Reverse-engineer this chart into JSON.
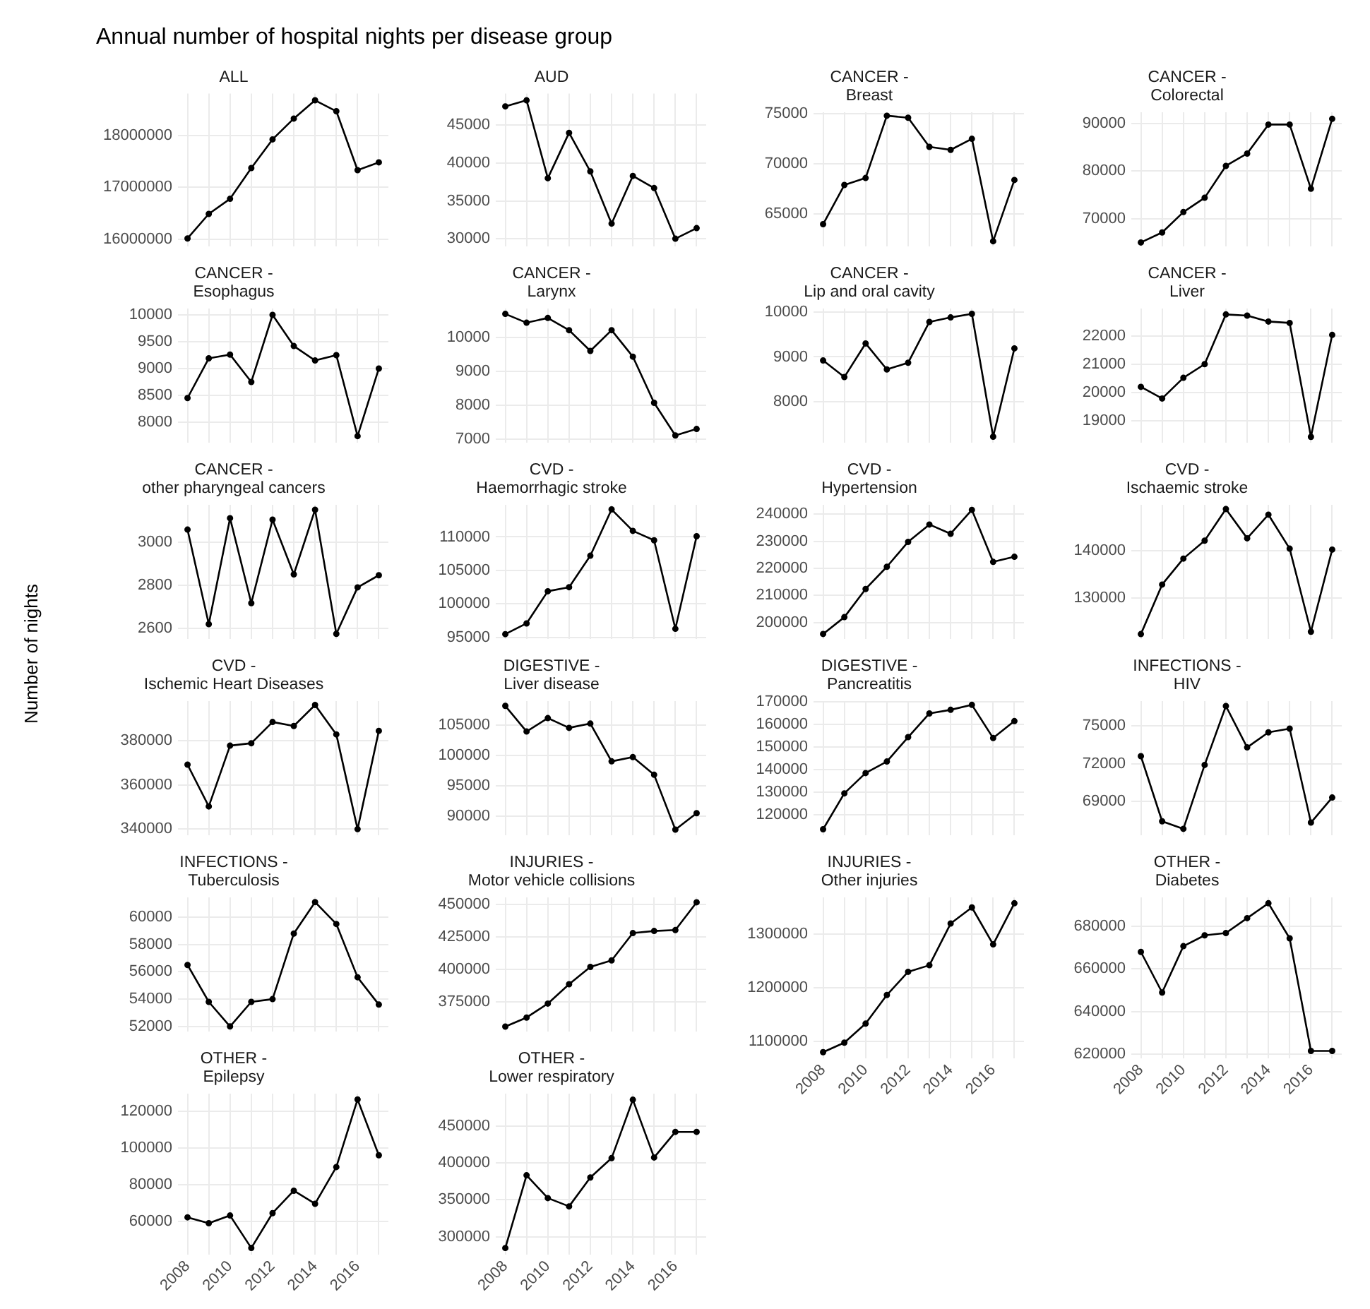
{
  "chart_data": [
    {
      "type": "other",
      "title": "Annual number of hospital nights per disease group",
      "ylabel": "Number of nights"
    },
    {
      "type": "line",
      "title": "ALL",
      "x": [
        2008,
        2009,
        2010,
        2011,
        2012,
        2013,
        2014,
        2015,
        2016,
        2017
      ],
      "values": [
        16020000,
        16490000,
        16780000,
        17370000,
        17920000,
        18320000,
        18670000,
        18460000,
        17330000,
        17480000
      ],
      "color": "#000000",
      "marker": "circle",
      "grid": true,
      "tick_labels": "y",
      "xlim": [
        2007.55,
        2017.45
      ],
      "xticks": [
        2008,
        {
          "value": 2009,
          "label": null
        },
        2010,
        {
          "value": 2011,
          "label": null
        },
        2012,
        {
          "value": 2013,
          "label": null
        },
        2014,
        {
          "value": 2015,
          "label": null
        },
        2016,
        {
          "value": 2017,
          "label": null
        }
      ],
      "ylim": [
        15870000,
        18800000
      ],
      "yticks": [
        16000000,
        17000000,
        18000000
      ]
    },
    {
      "type": "line",
      "title": "AUD",
      "x": [
        2008,
        2009,
        2010,
        2011,
        2012,
        2013,
        2014,
        2015,
        2016,
        2017
      ],
      "values": [
        47500,
        48300,
        38000,
        44000,
        38900,
        32000,
        38300,
        36700,
        30000,
        31400
      ],
      "color": "#000000",
      "marker": "circle",
      "grid": true,
      "tick_labels": "y",
      "xlim": [
        2007.55,
        2017.45
      ],
      "xticks": [
        2008,
        {
          "value": 2009,
          "label": null
        },
        2010,
        {
          "value": 2011,
          "label": null
        },
        2012,
        {
          "value": 2013,
          "label": null
        },
        2014,
        {
          "value": 2015,
          "label": null
        },
        2016,
        {
          "value": 2017,
          "label": null
        }
      ],
      "ylim": [
        29000,
        49200
      ],
      "yticks": [
        30000,
        35000,
        40000,
        45000
      ]
    },
    {
      "type": "line",
      "title": "CANCER -\nBreast",
      "x": [
        2008,
        2009,
        2010,
        2011,
        2012,
        2013,
        2014,
        2015,
        2016,
        2017
      ],
      "values": [
        64000,
        67900,
        68600,
        74800,
        74600,
        71700,
        71400,
        72500,
        62300,
        68400
      ],
      "color": "#000000",
      "marker": "circle",
      "grid": true,
      "tick_labels": "y",
      "xlim": [
        2007.55,
        2017.45
      ],
      "xticks": [
        2008,
        {
          "value": 2009,
          "label": null
        },
        2010,
        {
          "value": 2011,
          "label": null
        },
        2012,
        {
          "value": 2013,
          "label": null
        },
        2014,
        {
          "value": 2015,
          "label": null
        },
        2016,
        {
          "value": 2017,
          "label": null
        }
      ],
      "ylim": [
        61800,
        75150
      ],
      "yticks": [
        65000,
        70000,
        75000
      ]
    },
    {
      "type": "line",
      "title": "CANCER -\nColorectal",
      "x": [
        2008,
        2009,
        2010,
        2011,
        2012,
        2013,
        2014,
        2015,
        2016,
        2017
      ],
      "values": [
        65000,
        67100,
        71400,
        74400,
        81100,
        83700,
        89800,
        89800,
        76300,
        91000
      ],
      "color": "#000000",
      "marker": "circle",
      "grid": true,
      "tick_labels": "y",
      "xlim": [
        2007.55,
        2017.45
      ],
      "xticks": [
        2008,
        {
          "value": 2009,
          "label": null
        },
        2010,
        {
          "value": 2011,
          "label": null
        },
        2012,
        {
          "value": 2013,
          "label": null
        },
        2014,
        {
          "value": 2015,
          "label": null
        },
        2016,
        {
          "value": 2017,
          "label": null
        }
      ],
      "ylim": [
        64200,
        92400
      ],
      "yticks": [
        70000,
        80000,
        90000
      ]
    },
    {
      "type": "line",
      "title": "CANCER -\nEsophagus",
      "x": [
        2008,
        2009,
        2010,
        2011,
        2012,
        2013,
        2014,
        2015,
        2016,
        2017
      ],
      "values": [
        8450,
        9190,
        9260,
        8750,
        10000,
        9420,
        9150,
        9250,
        7740,
        9000
      ],
      "color": "#000000",
      "marker": "circle",
      "grid": true,
      "tick_labels": "y",
      "xlim": [
        2007.55,
        2017.45
      ],
      "xticks": [
        2008,
        {
          "value": 2009,
          "label": null
        },
        2010,
        {
          "value": 2011,
          "label": null
        },
        2012,
        {
          "value": 2013,
          "label": null
        },
        2014,
        {
          "value": 2015,
          "label": null
        },
        2016,
        {
          "value": 2017,
          "label": null
        }
      ],
      "ylim": [
        7620,
        10120
      ],
      "yticks": [
        8000,
        8500,
        9000,
        9500,
        10000
      ]
    },
    {
      "type": "line",
      "title": "CANCER -\nLarynx",
      "x": [
        2008,
        2009,
        2010,
        2011,
        2012,
        2013,
        2014,
        2015,
        2016,
        2017
      ],
      "values": [
        10690,
        10430,
        10570,
        10210,
        9600,
        10210,
        9430,
        8070,
        7110,
        7300
      ],
      "color": "#000000",
      "marker": "circle",
      "grid": true,
      "tick_labels": "y",
      "xlim": [
        2007.55,
        2017.45
      ],
      "xticks": [
        2008,
        {
          "value": 2009,
          "label": null
        },
        2010,
        {
          "value": 2011,
          "label": null
        },
        2012,
        {
          "value": 2013,
          "label": null
        },
        2014,
        {
          "value": 2015,
          "label": null
        },
        2016,
        {
          "value": 2017,
          "label": null
        }
      ],
      "ylim": [
        6900,
        10850
      ],
      "yticks": [
        7000,
        8000,
        9000,
        10000
      ]
    },
    {
      "type": "line",
      "title": "CANCER -\nLip and oral cavity",
      "x": [
        2008,
        2009,
        2010,
        2011,
        2012,
        2013,
        2014,
        2015,
        2016,
        2017
      ],
      "values": [
        8920,
        8550,
        9300,
        8720,
        8870,
        9780,
        9880,
        9960,
        7220,
        9190
      ],
      "color": "#000000",
      "marker": "circle",
      "grid": true,
      "tick_labels": "y",
      "xlim": [
        2007.55,
        2017.45
      ],
      "xticks": [
        2008,
        {
          "value": 2009,
          "label": null
        },
        2010,
        {
          "value": 2011,
          "label": null
        },
        2012,
        {
          "value": 2013,
          "label": null
        },
        2014,
        {
          "value": 2015,
          "label": null
        },
        2016,
        {
          "value": 2017,
          "label": null
        }
      ],
      "ylim": [
        7090,
        10080
      ],
      "yticks": [
        8000,
        9000,
        10000
      ]
    },
    {
      "type": "line",
      "title": "CANCER -\nLiver",
      "x": [
        2008,
        2009,
        2010,
        2011,
        2012,
        2013,
        2014,
        2015,
        2016,
        2017
      ],
      "values": [
        20200,
        19790,
        20520,
        21000,
        22750,
        22710,
        22500,
        22450,
        18440,
        22030
      ],
      "color": "#000000",
      "marker": "circle",
      "grid": true,
      "tick_labels": "y",
      "xlim": [
        2007.55,
        2017.45
      ],
      "xticks": [
        2008,
        {
          "value": 2009,
          "label": null
        },
        2010,
        {
          "value": 2011,
          "label": null
        },
        2012,
        {
          "value": 2013,
          "label": null
        },
        2014,
        {
          "value": 2015,
          "label": null
        },
        2016,
        {
          "value": 2017,
          "label": null
        }
      ],
      "ylim": [
        18240,
        22960
      ],
      "yticks": [
        19000,
        20000,
        21000,
        22000
      ]
    },
    {
      "type": "line",
      "title": "CANCER -\nother pharyngeal cancers",
      "x": [
        2008,
        2009,
        2010,
        2011,
        2012,
        2013,
        2014,
        2015,
        2016,
        2017
      ],
      "values": [
        3057,
        2620,
        3110,
        2717,
        3103,
        2850,
        3149,
        2575,
        2790,
        2846
      ],
      "color": "#000000",
      "marker": "circle",
      "grid": true,
      "tick_labels": "y",
      "xlim": [
        2007.55,
        2017.45
      ],
      "xticks": [
        2008,
        {
          "value": 2009,
          "label": null
        },
        2010,
        {
          "value": 2011,
          "label": null
        },
        2012,
        {
          "value": 2013,
          "label": null
        },
        2014,
        {
          "value": 2015,
          "label": null
        },
        2016,
        {
          "value": 2017,
          "label": null
        }
      ],
      "ylim": [
        2552,
        3172
      ],
      "yticks": [
        2600,
        2800,
        3000
      ]
    },
    {
      "type": "line",
      "title": "CVD -\nHaemorrhagic stroke",
      "x": [
        2008,
        2009,
        2010,
        2011,
        2012,
        2013,
        2014,
        2015,
        2016,
        2017
      ],
      "values": [
        95500,
        97100,
        101900,
        102500,
        107200,
        114100,
        110900,
        109500,
        96300,
        110100
      ],
      "color": "#000000",
      "marker": "circle",
      "grid": true,
      "tick_labels": "y",
      "xlim": [
        2007.55,
        2017.45
      ],
      "xticks": [
        2008,
        {
          "value": 2009,
          "label": null
        },
        2010,
        {
          "value": 2011,
          "label": null
        },
        2012,
        {
          "value": 2013,
          "label": null
        },
        2014,
        {
          "value": 2015,
          "label": null
        },
        2016,
        {
          "value": 2017,
          "label": null
        }
      ],
      "ylim": [
        94800,
        114800
      ],
      "yticks": [
        95000,
        100000,
        105000,
        110000
      ]
    },
    {
      "type": "line",
      "title": "CVD -\nHypertension",
      "x": [
        2008,
        2009,
        2010,
        2011,
        2012,
        2013,
        2014,
        2015,
        2016,
        2017
      ],
      "values": [
        195800,
        202000,
        212400,
        220600,
        229800,
        236200,
        232800,
        241600,
        222400,
        224300
      ],
      "color": "#000000",
      "marker": "circle",
      "grid": true,
      "tick_labels": "y",
      "xlim": [
        2007.55,
        2017.45
      ],
      "xticks": [
        2008,
        {
          "value": 2009,
          "label": null
        },
        2010,
        {
          "value": 2011,
          "label": null
        },
        2012,
        {
          "value": 2013,
          "label": null
        },
        2014,
        {
          "value": 2015,
          "label": null
        },
        2016,
        {
          "value": 2017,
          "label": null
        }
      ],
      "ylim": [
        194000,
        243500
      ],
      "yticks": [
        200000,
        210000,
        220000,
        230000,
        240000
      ]
    },
    {
      "type": "line",
      "title": "CVD -\nIschaemic stroke",
      "x": [
        2008,
        2009,
        2010,
        2011,
        2012,
        2013,
        2014,
        2015,
        2016,
        2017
      ],
      "values": [
        122300,
        132800,
        138300,
        142100,
        148800,
        142600,
        147600,
        140400,
        122800,
        140200
      ],
      "color": "#000000",
      "marker": "circle",
      "grid": true,
      "tick_labels": "y",
      "xlim": [
        2007.55,
        2017.45
      ],
      "xticks": [
        2008,
        {
          "value": 2009,
          "label": null
        },
        2010,
        {
          "value": 2011,
          "label": null
        },
        2012,
        {
          "value": 2013,
          "label": null
        },
        2014,
        {
          "value": 2015,
          "label": null
        },
        2016,
        {
          "value": 2017,
          "label": null
        }
      ],
      "ylim": [
        121300,
        149700
      ],
      "yticks": [
        130000,
        140000
      ]
    },
    {
      "type": "line",
      "title": "CVD -\nIschemic Heart Diseases",
      "x": [
        2008,
        2009,
        2010,
        2011,
        2012,
        2013,
        2014,
        2015,
        2016,
        2017
      ],
      "values": [
        369200,
        350300,
        377800,
        378900,
        388500,
        386700,
        396200,
        382900,
        340000,
        384500
      ],
      "color": "#000000",
      "marker": "circle",
      "grid": true,
      "tick_labels": "y",
      "xlim": [
        2007.55,
        2017.45
      ],
      "xticks": [
        2008,
        {
          "value": 2009,
          "label": null
        },
        2010,
        {
          "value": 2011,
          "label": null
        },
        2012,
        {
          "value": 2013,
          "label": null
        },
        2014,
        {
          "value": 2015,
          "label": null
        },
        2016,
        {
          "value": 2017,
          "label": null
        }
      ],
      "ylim": [
        337300,
        398000
      ],
      "yticks": [
        340000,
        360000,
        380000
      ]
    },
    {
      "type": "line",
      "title": "DIGESTIVE -\nLiver disease",
      "x": [
        2008,
        2009,
        2010,
        2011,
        2012,
        2013,
        2014,
        2015,
        2016,
        2017
      ],
      "values": [
        108100,
        103900,
        106100,
        104500,
        105200,
        99000,
        99700,
        96800,
        87800,
        90500
      ],
      "color": "#000000",
      "marker": "circle",
      "grid": true,
      "tick_labels": "y",
      "xlim": [
        2007.55,
        2017.45
      ],
      "xticks": [
        2008,
        {
          "value": 2009,
          "label": null
        },
        2010,
        {
          "value": 2011,
          "label": null
        },
        2012,
        {
          "value": 2013,
          "label": null
        },
        2014,
        {
          "value": 2015,
          "label": null
        },
        2016,
        {
          "value": 2017,
          "label": null
        }
      ],
      "ylim": [
        86900,
        108900
      ],
      "yticks": [
        90000,
        95000,
        100000,
        105000
      ]
    },
    {
      "type": "line",
      "title": "DIGESTIVE -\nPancreatitis",
      "x": [
        2008,
        2009,
        2010,
        2011,
        2012,
        2013,
        2014,
        2015,
        2016,
        2017
      ],
      "values": [
        113600,
        129500,
        138500,
        143600,
        154400,
        164900,
        166500,
        168700,
        154000,
        161500
      ],
      "color": "#000000",
      "marker": "circle",
      "grid": true,
      "tick_labels": "y",
      "xlim": [
        2007.55,
        2017.45
      ],
      "xticks": [
        2008,
        {
          "value": 2009,
          "label": null
        },
        2010,
        {
          "value": 2011,
          "label": null
        },
        2012,
        {
          "value": 2013,
          "label": null
        },
        2014,
        {
          "value": 2015,
          "label": null
        },
        2016,
        {
          "value": 2017,
          "label": null
        }
      ],
      "ylim": [
        111000,
        170400
      ],
      "yticks": [
        120000,
        130000,
        140000,
        150000,
        160000,
        170000
      ]
    },
    {
      "type": "line",
      "title": "INFECTIONS -\nHIV",
      "x": [
        2008,
        2009,
        2010,
        2011,
        2012,
        2013,
        2014,
        2015,
        2016,
        2017
      ],
      "values": [
        72600,
        67400,
        66800,
        71900,
        76600,
        73300,
        74500,
        74800,
        67300,
        69300
      ],
      "color": "#000000",
      "marker": "circle",
      "grid": true,
      "tick_labels": "y",
      "xlim": [
        2007.55,
        2017.45
      ],
      "xticks": [
        2008,
        {
          "value": 2009,
          "label": null
        },
        2010,
        {
          "value": 2011,
          "label": null
        },
        2012,
        {
          "value": 2013,
          "label": null
        },
        2014,
        {
          "value": 2015,
          "label": null
        },
        2016,
        {
          "value": 2017,
          "label": null
        }
      ],
      "ylim": [
        66300,
        77000
      ],
      "yticks": [
        69000,
        72000,
        75000
      ]
    },
    {
      "type": "line",
      "title": "INFECTIONS -\nTuberculosis",
      "x": [
        2008,
        2009,
        2010,
        2011,
        2012,
        2013,
        2014,
        2015,
        2016,
        2017
      ],
      "values": [
        56500,
        53800,
        52000,
        53800,
        54000,
        58800,
        61100,
        59500,
        55600,
        53600
      ],
      "color": "#000000",
      "marker": "circle",
      "grid": true,
      "tick_labels": "y",
      "xlim": [
        2007.55,
        2017.45
      ],
      "xticks": [
        2008,
        {
          "value": 2009,
          "label": null
        },
        2010,
        {
          "value": 2011,
          "label": null
        },
        2012,
        {
          "value": 2013,
          "label": null
        },
        2014,
        {
          "value": 2015,
          "label": null
        },
        2016,
        {
          "value": 2017,
          "label": null
        }
      ],
      "ylim": [
        51640,
        61450
      ],
      "yticks": [
        52000,
        54000,
        56000,
        58000,
        60000
      ]
    },
    {
      "type": "line",
      "title": "INJURIES -\nMotor vehicle collisions",
      "x": [
        2008,
        2009,
        2010,
        2011,
        2012,
        2013,
        2014,
        2015,
        2016,
        2017
      ],
      "values": [
        356300,
        363200,
        373900,
        388700,
        402000,
        407000,
        427900,
        429500,
        430200,
        451500
      ],
      "color": "#000000",
      "marker": "circle",
      "grid": true,
      "tick_labels": "y",
      "xlim": [
        2007.55,
        2017.45
      ],
      "xticks": [
        2008,
        {
          "value": 2009,
          "label": null
        },
        2010,
        {
          "value": 2011,
          "label": null
        },
        2012,
        {
          "value": 2013,
          "label": null
        },
        2014,
        {
          "value": 2015,
          "label": null
        },
        2016,
        {
          "value": 2017,
          "label": null
        }
      ],
      "ylim": [
        352600,
        455300
      ],
      "yticks": [
        375000,
        400000,
        425000,
        450000
      ]
    },
    {
      "type": "line",
      "title": "INJURIES -\nOther injuries",
      "x": [
        2008,
        2009,
        2010,
        2011,
        2012,
        2013,
        2014,
        2015,
        2016,
        2017
      ],
      "values": [
        1080000,
        1097800,
        1133300,
        1186700,
        1230000,
        1242200,
        1320000,
        1350000,
        1281100,
        1357800
      ],
      "color": "#000000",
      "marker": "circle",
      "grid": true,
      "xlim": [
        2007.55,
        2017.45
      ],
      "xticks": [
        2008,
        {
          "value": 2009,
          "label": null
        },
        2010,
        {
          "value": 2011,
          "label": null
        },
        2012,
        {
          "value": 2013,
          "label": null
        },
        2014,
        {
          "value": 2015,
          "label": null
        },
        2016,
        {
          "value": 2017,
          "label": null
        }
      ],
      "ylim": [
        1068900,
        1368900
      ],
      "yticks": [
        1100000,
        1200000,
        1300000
      ]
    },
    {
      "type": "line",
      "title": "OTHER -\nDiabetes",
      "x": [
        2008,
        2009,
        2010,
        2011,
        2012,
        2013,
        2014,
        2015,
        2016,
        2017
      ],
      "values": [
        668000,
        648900,
        670700,
        675800,
        676900,
        683900,
        690900,
        674400,
        621400,
        621400
      ],
      "color": "#000000",
      "marker": "circle",
      "grid": true,
      "xlim": [
        2007.55,
        2017.45
      ],
      "xticks": [
        2008,
        {
          "value": 2009,
          "label": null
        },
        2010,
        {
          "value": 2011,
          "label": null
        },
        2012,
        {
          "value": 2013,
          "label": null
        },
        2014,
        {
          "value": 2015,
          "label": null
        },
        2016,
        {
          "value": 2017,
          "label": null
        }
      ],
      "ylim": [
        618000,
        693700
      ],
      "yticks": [
        620000,
        640000,
        660000,
        680000
      ]
    },
    {
      "type": "line",
      "title": "OTHER -\nEpilepsy",
      "x": [
        2008,
        2009,
        2010,
        2011,
        2012,
        2013,
        2014,
        2015,
        2016,
        2017
      ],
      "values": [
        62200,
        59000,
        63200,
        45500,
        64500,
        76700,
        69600,
        89600,
        126400,
        96000
      ],
      "color": "#000000",
      "marker": "circle",
      "grid": true,
      "xlim": [
        2007.55,
        2017.45
      ],
      "xticks": [
        2008,
        {
          "value": 2009,
          "label": null
        },
        2010,
        {
          "value": 2011,
          "label": null
        },
        2012,
        {
          "value": 2013,
          "label": null
        },
        2014,
        {
          "value": 2015,
          "label": null
        },
        2016,
        {
          "value": 2017,
          "label": null
        }
      ],
      "ylim": [
        42000,
        129600
      ],
      "yticks": [
        60000,
        80000,
        100000,
        120000
      ]
    },
    {
      "type": "line",
      "title": "OTHER -\nLower respiratory",
      "x": [
        2008,
        2009,
        2010,
        2011,
        2012,
        2013,
        2014,
        2015,
        2016,
        2017
      ],
      "values": [
        284800,
        383300,
        352400,
        341200,
        380300,
        406500,
        485600,
        407400,
        442000,
        442000
      ],
      "color": "#000000",
      "marker": "circle",
      "grid": true,
      "xlim": [
        2007.55,
        2017.45
      ],
      "xticks": [
        2008,
        {
          "value": 2009,
          "label": null
        },
        2010,
        {
          "value": 2011,
          "label": null
        },
        2012,
        {
          "value": 2013,
          "label": null
        },
        2014,
        {
          "value": 2015,
          "label": null
        },
        2016,
        {
          "value": 2017,
          "label": null
        }
      ],
      "ylim": [
        276100,
        493900
      ],
      "yticks": [
        300000,
        350000,
        400000,
        450000
      ]
    }
  ]
}
